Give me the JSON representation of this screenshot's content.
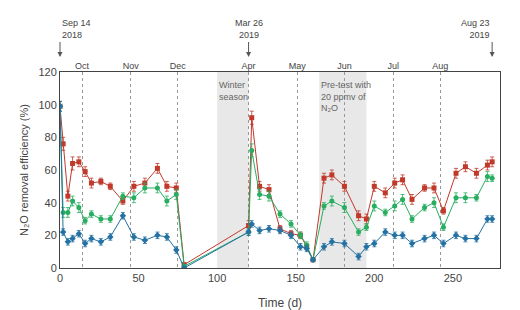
{
  "chart_data": {
    "type": "line",
    "xlabel": "Time (d)",
    "ylabel": "N₂O removal efficiency (%)",
    "x": [
      0,
      2,
      5,
      8,
      12,
      16,
      20,
      26,
      32,
      40,
      47,
      54,
      62,
      68,
      74,
      79,
      120,
      122,
      127,
      133,
      140,
      147,
      153,
      157,
      161,
      168,
      173,
      181,
      190,
      195,
      200,
      207,
      213,
      218,
      224,
      232,
      238,
      244,
      252,
      258,
      265,
      272,
      275
    ],
    "series": [
      {
        "color": "#c0392b",
        "marker": "square",
        "values": [
          99,
          76,
          44,
          64,
          65,
          59,
          52,
          53,
          50,
          41,
          50,
          52,
          61,
          50,
          49,
          2,
          26,
          92,
          50,
          48,
          24,
          21,
          20,
          13,
          5,
          55,
          57,
          50,
          32,
          30,
          50,
          46,
          52,
          54,
          42,
          49,
          49,
          35,
          58,
          62,
          58,
          63,
          65
        ],
        "errors": [
          3,
          4,
          3,
          4,
          3,
          3,
          3,
          2,
          2,
          2,
          3,
          3,
          3,
          3,
          3,
          1,
          3,
          4,
          3,
          3,
          2,
          2,
          2,
          2,
          1,
          3,
          3,
          3,
          3,
          3,
          3,
          3,
          3,
          3,
          3,
          2,
          3,
          2,
          3,
          3,
          3,
          3,
          3
        ]
      },
      {
        "color": "#27ae60",
        "marker": "circle",
        "values": [
          99,
          34,
          34,
          41,
          37,
          29,
          33,
          30,
          30,
          44,
          43,
          49,
          49,
          41,
          45,
          1,
          22,
          72,
          45,
          44,
          33,
          27,
          20,
          14,
          5,
          38,
          41,
          37,
          22,
          25,
          38,
          34,
          38,
          42,
          30,
          37,
          40,
          25,
          43,
          43,
          43,
          56,
          55
        ],
        "errors": [
          3,
          3,
          3,
          3,
          3,
          2,
          2,
          2,
          2,
          2,
          3,
          3,
          3,
          3,
          3,
          1,
          2,
          4,
          3,
          3,
          2,
          2,
          2,
          2,
          1,
          2,
          3,
          3,
          2,
          2,
          3,
          2,
          3,
          3,
          2,
          2,
          3,
          2,
          3,
          3,
          2,
          3,
          2
        ]
      },
      {
        "color": "#2471a3",
        "marker": "diamond",
        "values": [
          99,
          22,
          16,
          18,
          21,
          15,
          18,
          16,
          19,
          32,
          19,
          17,
          20,
          19,
          11,
          0,
          22,
          27,
          23,
          24,
          23,
          20,
          13,
          12,
          5,
          13,
          16,
          15,
          7,
          13,
          15,
          22,
          20,
          20,
          15,
          18,
          20,
          15,
          20,
          18,
          18,
          30,
          30
        ],
        "errors": [
          3,
          2,
          2,
          2,
          2,
          2,
          2,
          2,
          2,
          2,
          2,
          2,
          2,
          2,
          2,
          0,
          2,
          2,
          2,
          2,
          2,
          2,
          2,
          2,
          1,
          2,
          2,
          2,
          2,
          2,
          2,
          2,
          2,
          2,
          2,
          2,
          2,
          2,
          2,
          2,
          2,
          2,
          2
        ]
      }
    ],
    "xlim": [
      0,
      280
    ],
    "xticks": [
      0,
      50,
      100,
      150,
      200,
      250
    ],
    "ylim": [
      0,
      120
    ],
    "yticks": [
      0,
      20,
      40,
      60,
      80,
      100,
      120
    ],
    "x2lim": [
      0,
      280
    ],
    "x2ticks": [
      {
        "value": 14,
        "label": "Oct"
      },
      {
        "value": 45,
        "label": "Nov"
      },
      {
        "value": 75,
        "label": "Dec"
      },
      {
        "value": 120,
        "label": "Apr"
      },
      {
        "value": 151,
        "label": "May"
      },
      {
        "value": 181,
        "label": "Jun"
      },
      {
        "value": 212,
        "label": "Jul"
      },
      {
        "value": 242,
        "label": "Aug"
      }
    ],
    "grid": false,
    "regions": [
      {
        "x": [
          100,
          120
        ],
        "color": "#e8e8e8",
        "text": "Winter\nseason"
      },
      {
        "x": [
          165,
          195
        ],
        "color": "#e8e8e8",
        "text": "Pre-test with\n20 ppmv of\nN₂O"
      }
    ],
    "annotations": [
      {
        "text": "Sep 14\n2018",
        "x": 0
      },
      {
        "text": "Mar 26\n2019",
        "x": 120
      },
      {
        "text": "Aug 23\n2019",
        "x": 275
      }
    ]
  }
}
